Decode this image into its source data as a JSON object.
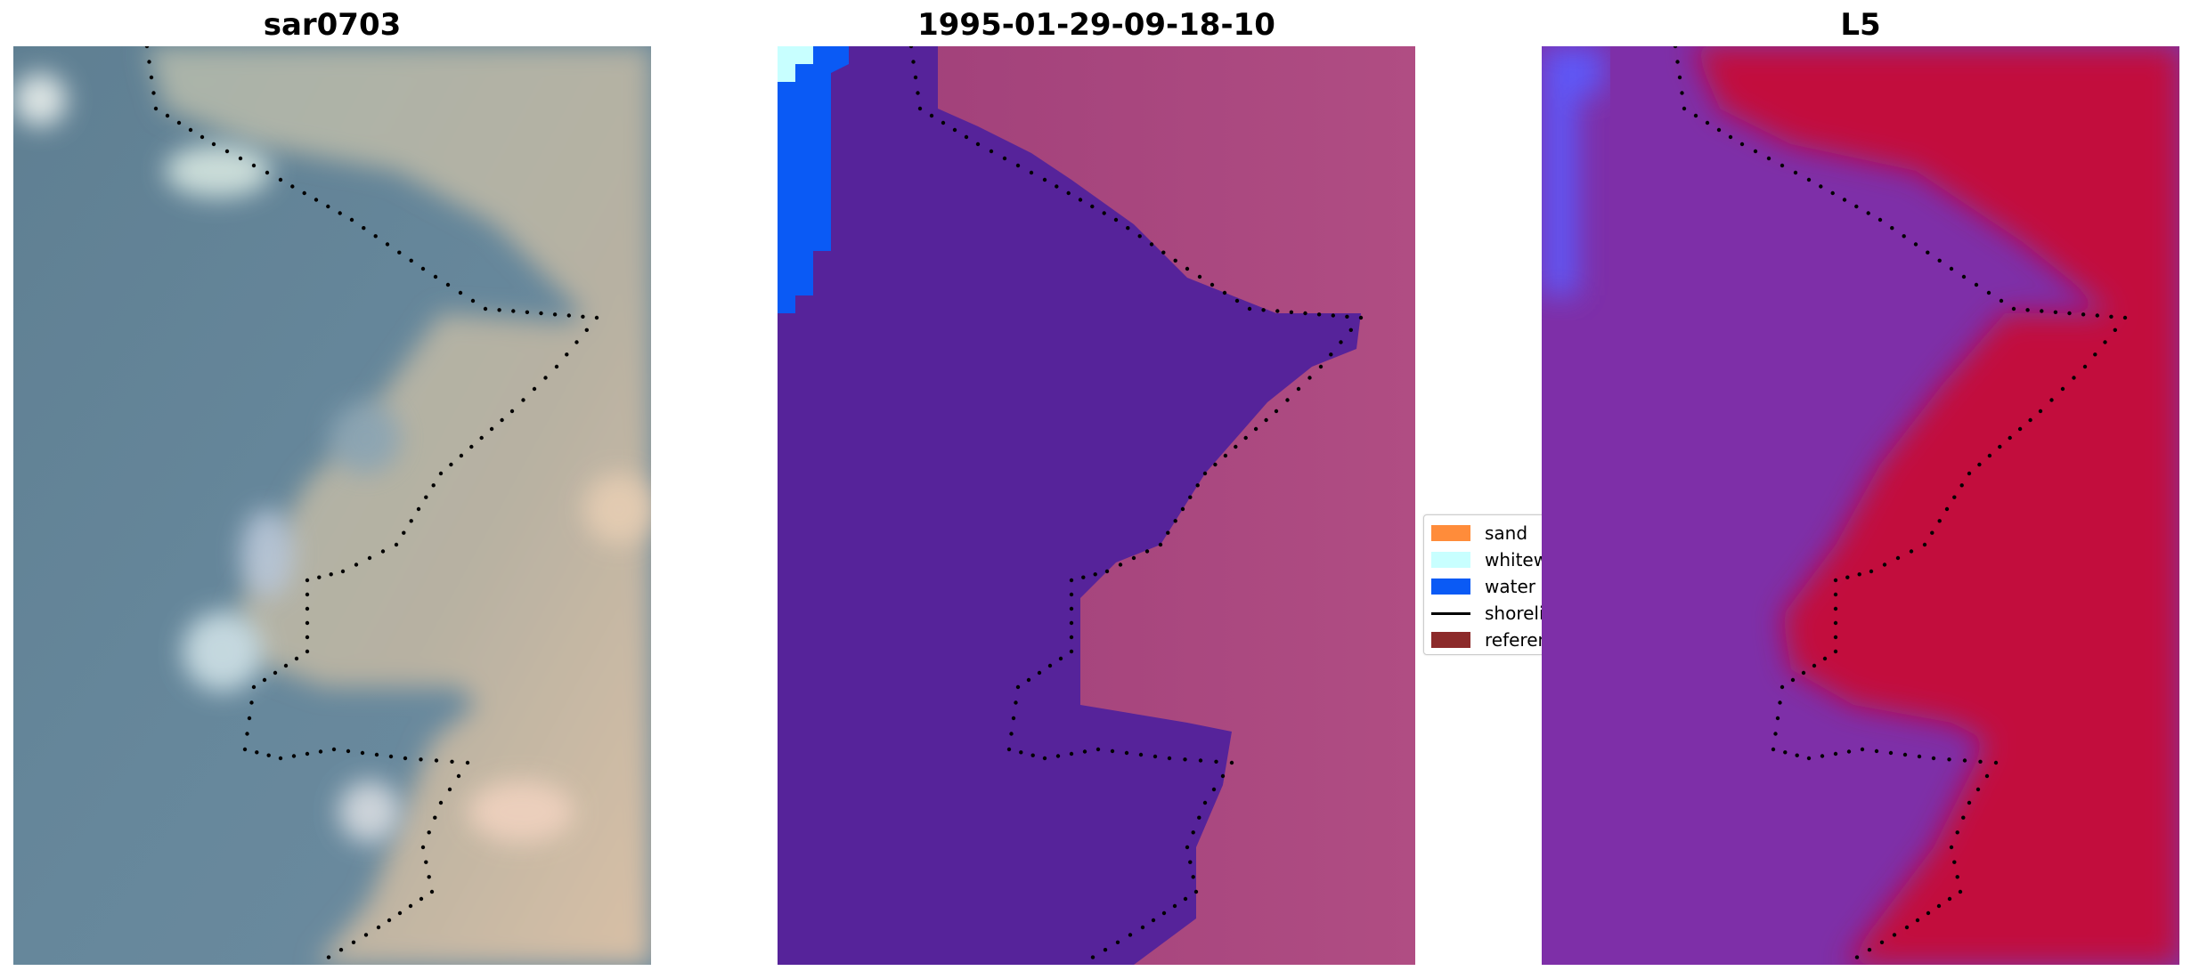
{
  "panels": [
    {
      "id": "rgb",
      "title": "sar0703"
    },
    {
      "id": "classified",
      "title": "1995-01-29-09-18-10"
    },
    {
      "id": "mndwi",
      "title": "L5"
    }
  ],
  "legend": {
    "items": [
      {
        "label": "sand",
        "color": "#ff8c3a",
        "kind": "patch"
      },
      {
        "label": "whitewater",
        "color": "#c8ffff",
        "kind": "patch"
      },
      {
        "label": "water",
        "color": "#0a5af5",
        "kind": "patch"
      },
      {
        "label": "shoreline",
        "color": "#000000",
        "kind": "line"
      },
      {
        "label": "reference shoreline",
        "color": "#8c2a2a",
        "kind": "patch"
      }
    ]
  },
  "colors": {
    "water_class": "#0a5af5",
    "whitewater_class": "#c8ffff",
    "land_dark": "#56239a",
    "shoreline_dots": "#000000",
    "mndwi_water": "#8a2fb0",
    "mndwi_land": "#c20a3c"
  }
}
